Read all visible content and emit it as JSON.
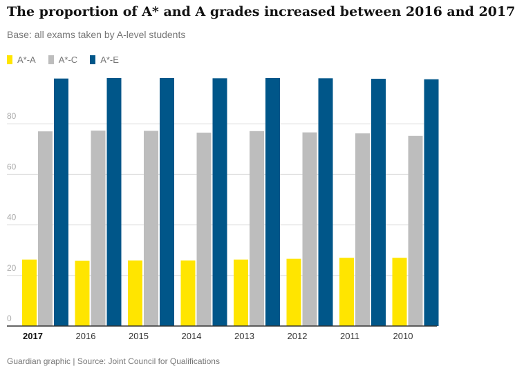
{
  "header": {
    "title": "The proportion of A* and A grades increased between 2016 and 2017",
    "subtitle": "Base: all exams taken by A-level students"
  },
  "footer": {
    "source": "Guardian graphic | Source: Joint Council for Qualifications"
  },
  "colors": {
    "grid": "#dcdcdc",
    "axis": "#333333",
    "tick_label": "#aaaaaa"
  },
  "chart_data": {
    "type": "bar",
    "title": "The proportion of A* and A grades increased between 2016 and 2017",
    "subtitle": "Base: all exams taken by A-level students",
    "categories": [
      "2017",
      "2016",
      "2015",
      "2014",
      "2013",
      "2012",
      "2011",
      "2010"
    ],
    "series": [
      {
        "name": "A*-A",
        "color": "#ffe500",
        "values": [
          26.3,
          25.8,
          25.9,
          25.9,
          26.3,
          26.6,
          27.0,
          27.0
        ]
      },
      {
        "name": "A*-C",
        "color": "#bdbdbd",
        "values": [
          77.0,
          77.3,
          77.2,
          76.5,
          77.1,
          76.6,
          76.2,
          75.2
        ]
      },
      {
        "name": "A*-E",
        "color": "#005689",
        "values": [
          97.9,
          98.1,
          98.1,
          98.0,
          98.1,
          98.0,
          97.8,
          97.6
        ]
      }
    ],
    "xlabel": "",
    "ylabel": "",
    "ylim": [
      0,
      100
    ],
    "yticks": [
      0,
      20,
      40,
      60,
      80
    ],
    "grid": true,
    "legend_position": "top-left"
  }
}
